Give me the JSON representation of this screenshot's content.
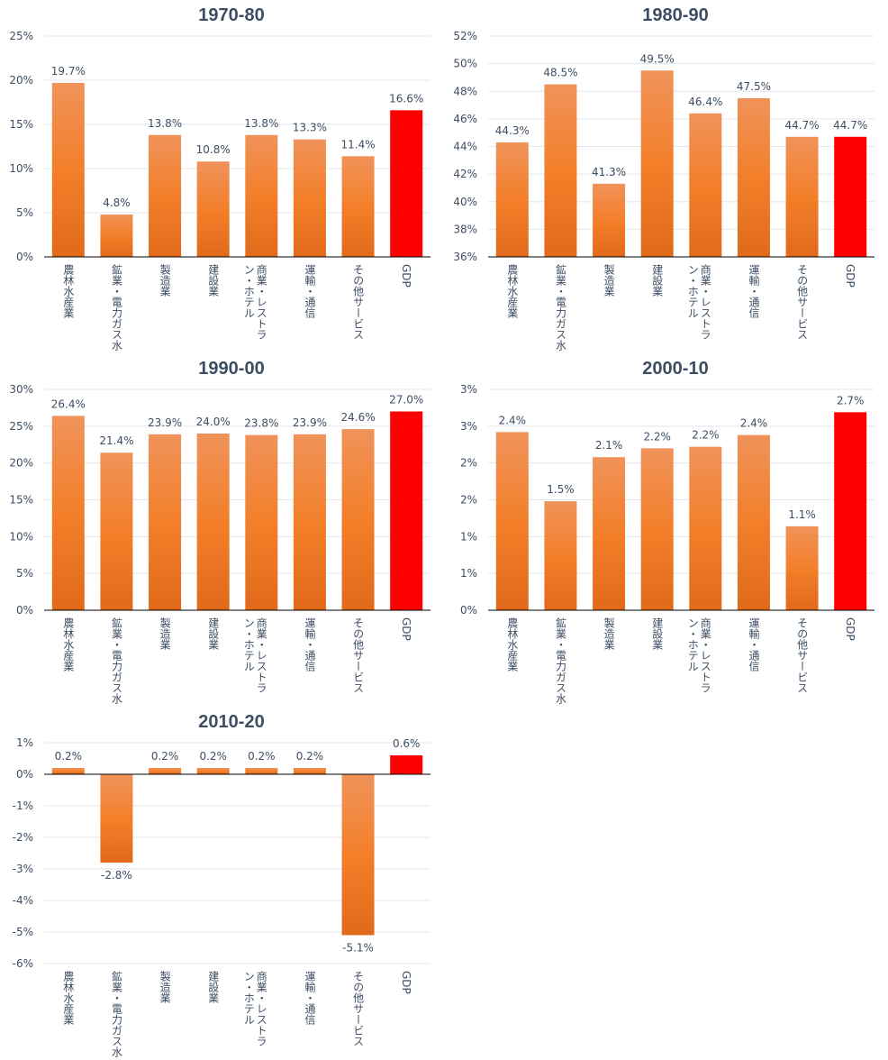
{
  "chart_data": [
    {
      "type": "bar",
      "title": "1970-80",
      "ylim": [
        0,
        25
      ],
      "ticks": [
        0,
        5,
        10,
        15,
        20,
        25
      ],
      "tick_labels": [
        "0%",
        "5%",
        "10%",
        "15%",
        "20%",
        "25%"
      ],
      "categories": [
        "農林水産業",
        "鉱業・電力ガス水",
        "製造業",
        "建設業",
        "商業・レストラン・ホテル",
        "運輸・通信",
        "その他サービス",
        "GDP"
      ],
      "values": [
        19.7,
        4.8,
        13.8,
        10.8,
        13.8,
        13.3,
        11.4,
        16.6
      ],
      "labels": [
        "19.7%",
        "4.8%",
        "13.8%",
        "10.8%",
        "13.8%",
        "13.3%",
        "11.4%",
        "16.6%"
      ]
    },
    {
      "type": "bar",
      "title": "1980-90",
      "ylim": [
        36,
        52
      ],
      "ticks": [
        36,
        38,
        40,
        42,
        44,
        46,
        48,
        50,
        52
      ],
      "tick_labels": [
        "36%",
        "38%",
        "40%",
        "42%",
        "44%",
        "46%",
        "48%",
        "50%",
        "52%"
      ],
      "categories": [
        "農林水産業",
        "鉱業・電力ガス水",
        "製造業",
        "建設業",
        "商業・レストラン・ホテル",
        "運輸・通信",
        "その他サービス",
        "GDP"
      ],
      "values": [
        44.3,
        48.5,
        41.3,
        49.5,
        46.4,
        47.5,
        44.7,
        44.7
      ],
      "labels": [
        "44.3%",
        "48.5%",
        "41.3%",
        "49.5%",
        "46.4%",
        "47.5%",
        "44.7%",
        "44.7%"
      ]
    },
    {
      "type": "bar",
      "title": "1990-00",
      "ylim": [
        0,
        30
      ],
      "ticks": [
        0,
        5,
        10,
        15,
        20,
        25,
        30
      ],
      "tick_labels": [
        "0%",
        "5%",
        "10%",
        "15%",
        "20%",
        "25%",
        "30%"
      ],
      "categories": [
        "農林水産業",
        "鉱業・電力ガス水",
        "製造業",
        "建設業",
        "商業・レストラン・ホテル",
        "運輸・通信",
        "その他サービス",
        "GDP"
      ],
      "values": [
        26.4,
        21.4,
        23.9,
        24.0,
        23.8,
        23.9,
        24.6,
        27.0
      ],
      "labels": [
        "26.4%",
        "21.4%",
        "23.9%",
        "24.0%",
        "23.8%",
        "23.9%",
        "24.6%",
        "27.0%"
      ]
    },
    {
      "type": "bar",
      "title": "2000-10",
      "ylim": [
        0,
        3
      ],
      "ticks": [
        0,
        0.5,
        1,
        1.5,
        2,
        2.5,
        3
      ],
      "tick_labels": [
        "0%",
        "1%",
        "1%",
        "2%",
        "2%",
        "3%",
        "3%"
      ],
      "categories": [
        "農林水産業",
        "鉱業・電力ガス水",
        "製造業",
        "建設業",
        "商業・レストラン・ホテル",
        "運輸・通信",
        "その他サービス",
        "GDP"
      ],
      "values": [
        2.42,
        1.48,
        2.08,
        2.2,
        2.22,
        2.38,
        1.14,
        2.69
      ],
      "labels": [
        "2.4%",
        "1.5%",
        "2.1%",
        "2.2%",
        "2.2%",
        "2.4%",
        "1.1%",
        "2.7%"
      ]
    },
    {
      "type": "bar",
      "title": "2010-20",
      "ylim": [
        -6,
        1
      ],
      "ticks": [
        -6,
        -5,
        -4,
        -3,
        -2,
        -1,
        0,
        1
      ],
      "tick_labels": [
        "-6%",
        "-5%",
        "-4%",
        "-3%",
        "-2%",
        "-1%",
        "0%",
        "1%"
      ],
      "categories": [
        "農林水産業",
        "鉱業・電力ガス水",
        "製造業",
        "建設業",
        "商業・レストラン・ホテル",
        "運輸・通信",
        "その他サービス",
        "GDP"
      ],
      "values": [
        0.2,
        -2.8,
        0.2,
        0.2,
        0.2,
        0.2,
        -5.1,
        0.6
      ],
      "labels": [
        "0.2%",
        "-2.8%",
        "0.2%",
        "0.2%",
        "0.2%",
        "0.2%",
        "-5.1%",
        "0.6%"
      ]
    }
  ],
  "colors": {
    "bar_top": "#f0935a",
    "bar_mid": "#f37f2a",
    "bar_bottom": "#e06a1a",
    "gdp": "#ff0000",
    "grid": "#e3e6ea",
    "axis": "#000000",
    "text": "#3d4d63"
  }
}
